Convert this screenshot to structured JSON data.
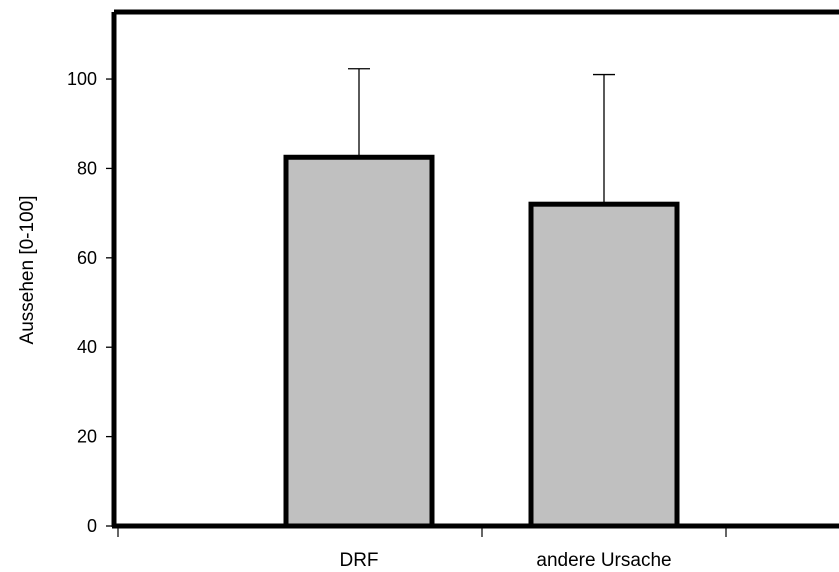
{
  "chart_data": {
    "type": "bar",
    "categories": [
      "DRF",
      "andere Ursache"
    ],
    "values": [
      82.5,
      72
    ],
    "error_upper": [
      102.3,
      101
    ],
    "ylabel": "Aussehen [0-100]",
    "xlabel": "",
    "ylim": [
      0,
      115
    ],
    "yticks": [
      0,
      20,
      40,
      60,
      80,
      100
    ],
    "ytick_labels": [
      "0",
      "20",
      "40",
      "60",
      "80",
      "100"
    ],
    "grid": false,
    "bar_color": "#c0c0c0",
    "edge_color": "#000000"
  }
}
